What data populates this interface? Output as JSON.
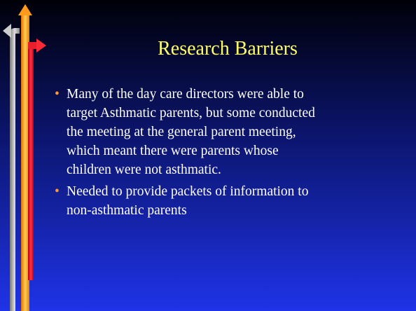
{
  "slide": {
    "title": "Research Barriers",
    "bullets": [
      {
        "lines": [
          "Many of the day care directors were able to",
          "target Asthmatic parents, but some conducted",
          "the meeting at the general parent meeting,",
          "which meant there were parents whose",
          "children were not asthmatic."
        ]
      },
      {
        "lines": [
          "Needed to provide packets of information to",
          "non-asthmatic parents"
        ]
      }
    ]
  }
}
